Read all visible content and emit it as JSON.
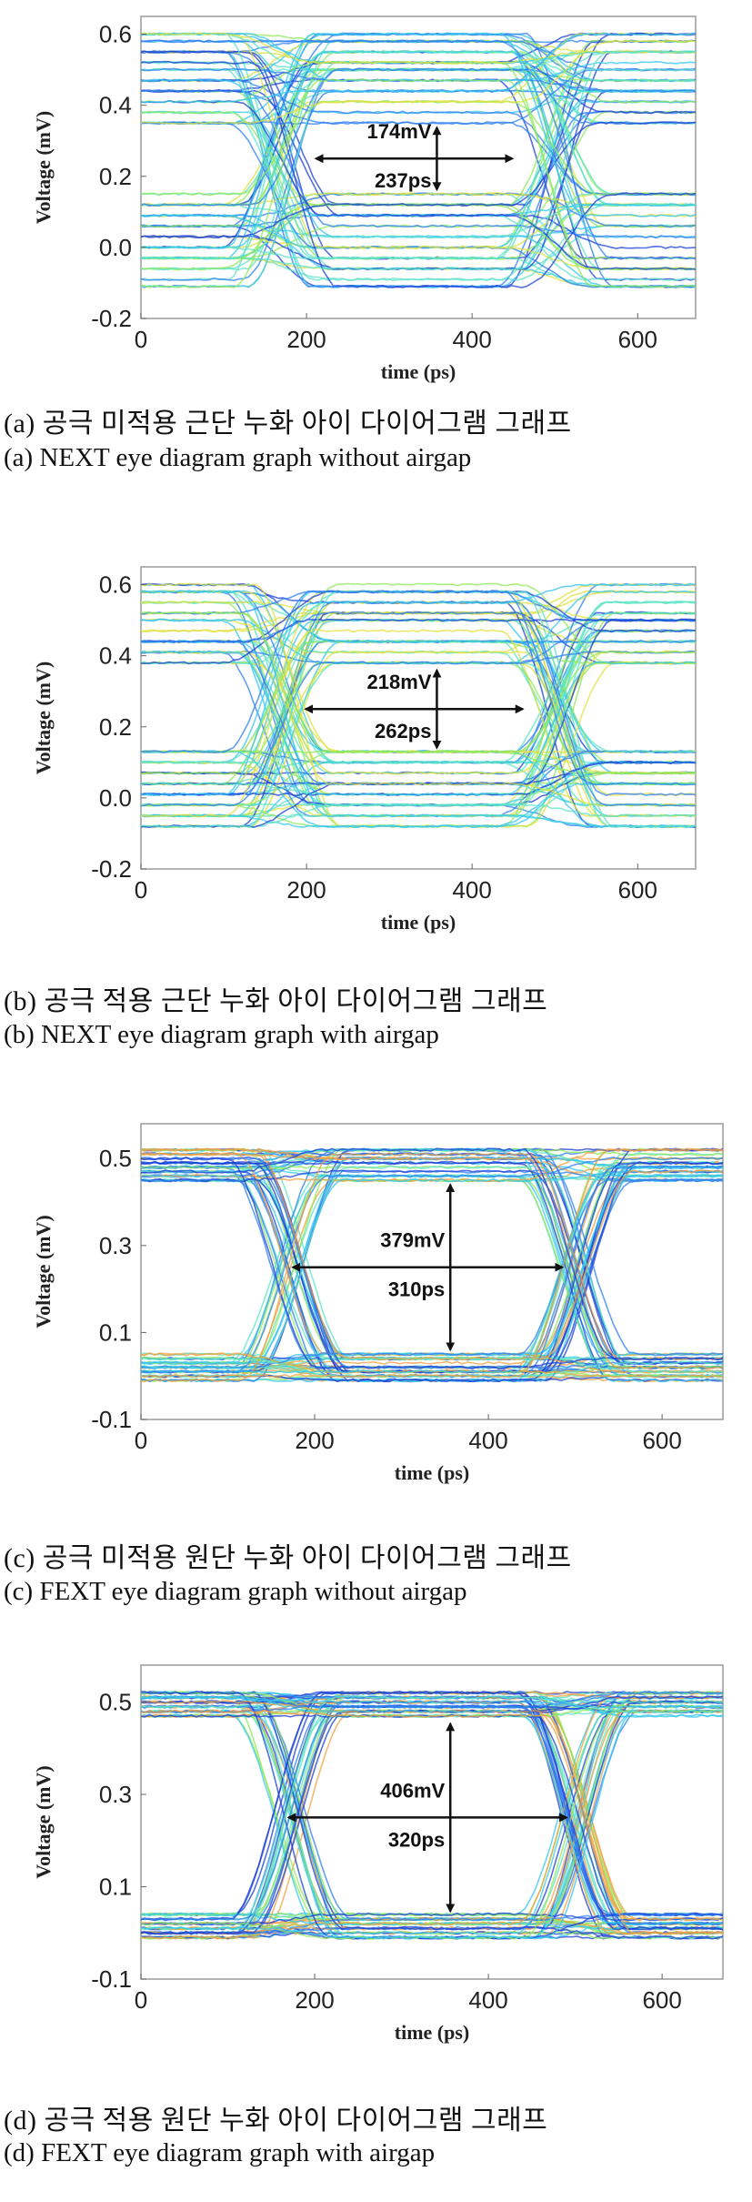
{
  "figures": [
    {
      "caption_ko": "(a) 공극 미적용 근단 누화 아이 다이어그램 그래프",
      "caption_en": "(a) NEXT eye diagram graph without airgap"
    },
    {
      "caption_ko": "(b) 공극 적용 근단 누화 아이 다이어그램 그래프",
      "caption_en": "(b) NEXT eye diagram graph with airgap"
    },
    {
      "caption_ko": "(c) 공극 미적용 원단 누화 아이 다이어그램 그래프",
      "caption_en": "(c) FEXT eye diagram graph without airgap"
    },
    {
      "caption_ko": "(d) 공극 적용 원단 누화 아이 다이어그램 그래프",
      "caption_en": "(d) FEXT eye diagram graph with airgap"
    }
  ],
  "chart_data": [
    {
      "type": "line",
      "variant": "eye-diagram",
      "xlabel": "time (ps)",
      "ylabel": "Voltage (mV)",
      "xlim": [
        0,
        670
      ],
      "ylim": [
        -0.2,
        0.65
      ],
      "xticks": [
        0,
        200,
        400,
        600
      ],
      "xtick_labels": [
        "0",
        "200",
        "400",
        "600"
      ],
      "yticks": [
        0.6,
        0.4,
        0.2,
        0.0,
        -0.2
      ],
      "ytick_labels": [
        "0.6",
        "0.4",
        "0.2",
        "0.0",
        "-0.2"
      ],
      "high_levels": [
        0.6,
        0.58,
        0.55,
        0.52,
        0.5,
        0.47,
        0.44,
        0.41,
        0.38,
        0.35
      ],
      "low_levels": [
        0.15,
        0.12,
        0.09,
        0.06,
        0.03,
        0.0,
        -0.03,
        -0.06,
        -0.09,
        -0.11
      ],
      "bit_period_ps": 330,
      "crossings_ps": [
        170,
        500
      ],
      "cross_level": 0.25,
      "eye_height_label": "174mV",
      "eye_width_label": "237ps",
      "eye_height_mV": 174,
      "eye_width_ps": 237,
      "eye_center_ps": 330,
      "colors": [
        "#1b3fd6",
        "#2f7ff0",
        "#34c6f0",
        "#5ee3c7",
        "#8fe85a",
        "#e0e040"
      ]
    },
    {
      "type": "line",
      "variant": "eye-diagram",
      "xlabel": "time (ps)",
      "ylabel": "Voltage (mV)",
      "xlim": [
        0,
        670
      ],
      "ylim": [
        -0.2,
        0.65
      ],
      "xticks": [
        0,
        200,
        400,
        600
      ],
      "xtick_labels": [
        "0",
        "200",
        "400",
        "600"
      ],
      "yticks": [
        0.6,
        0.4,
        0.2,
        0.0,
        -0.2
      ],
      "ytick_labels": [
        "0.6",
        "0.4",
        "0.2",
        "0.0",
        "-0.2"
      ],
      "high_levels": [
        0.6,
        0.58,
        0.55,
        0.52,
        0.5,
        0.47,
        0.44,
        0.41,
        0.38
      ],
      "low_levels": [
        0.13,
        0.1,
        0.07,
        0.04,
        0.01,
        -0.02,
        -0.05,
        -0.08
      ],
      "bit_period_ps": 330,
      "crossings_ps": [
        170,
        500
      ],
      "cross_level": 0.25,
      "eye_height_label": "218mV",
      "eye_width_label": "262ps",
      "eye_height_mV": 218,
      "eye_width_ps": 262,
      "eye_center_ps": 330,
      "colors": [
        "#1b3fd6",
        "#2f7ff0",
        "#34c6f0",
        "#5ee3c7",
        "#8fe85a",
        "#e0e040"
      ]
    },
    {
      "type": "line",
      "variant": "eye-diagram",
      "xlabel": "time (ps)",
      "ylabel": "Voltage (mV)",
      "xlim": [
        0,
        670
      ],
      "ylim": [
        -0.1,
        0.58
      ],
      "xticks": [
        0,
        200,
        400,
        600
      ],
      "xtick_labels": [
        "0",
        "200",
        "400",
        "600"
      ],
      "yticks": [
        0.5,
        0.3,
        0.1,
        -0.1
      ],
      "ytick_labels": [
        "0.5",
        "0.3",
        "0.1",
        "-0.1"
      ],
      "high_levels": [
        0.52,
        0.51,
        0.5,
        0.49,
        0.48,
        0.47,
        0.46,
        0.45
      ],
      "low_levels": [
        0.05,
        0.04,
        0.03,
        0.02,
        0.01,
        0.0,
        -0.01
      ],
      "bit_period_ps": 330,
      "crossings_ps": [
        170,
        500
      ],
      "cross_level": 0.25,
      "eye_height_label": "379mV",
      "eye_width_label": "310ps",
      "eye_height_mV": 379,
      "eye_width_ps": 310,
      "eye_center_ps": 330,
      "colors": [
        "#1b3fd6",
        "#2f7ff0",
        "#34c6f0",
        "#5ee3c7",
        "#8fe85a",
        "#f0a040"
      ]
    },
    {
      "type": "line",
      "variant": "eye-diagram",
      "xlabel": "time (ps)",
      "ylabel": "Voltage (mV)",
      "xlim": [
        0,
        670
      ],
      "ylim": [
        -0.1,
        0.58
      ],
      "xticks": [
        0,
        200,
        400,
        600
      ],
      "xtick_labels": [
        "0",
        "200",
        "400",
        "600"
      ],
      "yticks": [
        0.5,
        0.3,
        0.1,
        -0.1
      ],
      "ytick_labels": [
        "0.5",
        "0.3",
        "0.1",
        "-0.1"
      ],
      "high_levels": [
        0.52,
        0.51,
        0.5,
        0.49,
        0.48,
        0.47
      ],
      "low_levels": [
        0.04,
        0.03,
        0.02,
        0.01,
        0.0,
        -0.01
      ],
      "bit_period_ps": 330,
      "crossings_ps": [
        170,
        500
      ],
      "cross_level": 0.25,
      "eye_height_label": "406mV",
      "eye_width_label": "320ps",
      "eye_height_mV": 406,
      "eye_width_ps": 320,
      "eye_center_ps": 330,
      "colors": [
        "#1b3fd6",
        "#2f7ff0",
        "#34c6f0",
        "#5ee3c7",
        "#8fe85a",
        "#f0a040"
      ]
    }
  ]
}
